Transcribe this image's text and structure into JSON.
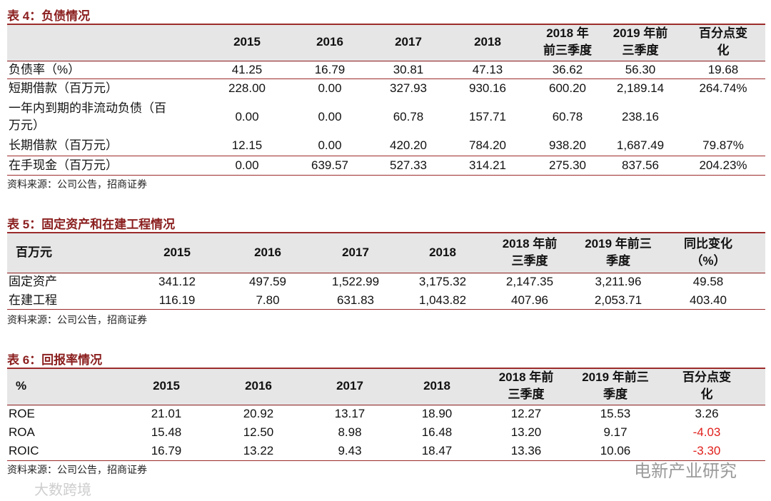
{
  "tables": [
    {
      "title": "表 4：负债情况",
      "header": [
        "",
        "2015",
        "2016",
        "2017",
        "2018",
        "2018 年\n前三季度",
        "2019 年前\n三季度",
        "百分点变\n化"
      ],
      "rows": [
        [
          "负债率（%）",
          "41.25",
          "16.79",
          "30.81",
          "47.13",
          "36.62",
          "56.30",
          "19.68"
        ],
        [
          "短期借款（百万元）",
          "228.00",
          "0.00",
          "327.93",
          "930.16",
          "600.20",
          "2,189.14",
          "264.74%"
        ],
        [
          "一年内到期的非流动负债（百\n万元）",
          "0.00",
          "0.00",
          "60.78",
          "157.71",
          "60.78",
          "238.16",
          null
        ],
        [
          "长期借款（百万元）",
          "12.15",
          "0.00",
          "420.20",
          "784.20",
          "938.20",
          "1,687.49",
          "79.87%"
        ],
        [
          "在手现金（百万元）",
          "0.00",
          "639.57",
          "527.33",
          "314.21",
          "275.30",
          "837.56",
          "204.23%"
        ]
      ],
      "source": "资料来源：公司公告，招商证券"
    },
    {
      "title": "表 5：固定资产和在建工程情况",
      "header": [
        "百万元",
        "2015",
        "2016",
        "2017",
        "2018",
        "2018 年前\n三季度",
        "2019 年前三\n季度",
        "同比变化\n（%）"
      ],
      "rows": [
        [
          "固定资产",
          "341.12",
          "497.59",
          "1,522.99",
          "3,175.32",
          "2,147.35",
          "3,211.96",
          "49.58"
        ],
        [
          "在建工程",
          "116.19",
          "7.80",
          "631.83",
          "1,043.82",
          "407.96",
          "2,053.71",
          "403.40"
        ]
      ],
      "source": "资料来源：公司公告，招商证券"
    },
    {
      "title": "表 6：回报率情况",
      "header": [
        "%",
        "2015",
        "2016",
        "2017",
        "2018",
        "2018 年前\n三季度",
        "2019 年前三\n季度",
        "百分点变\n化"
      ],
      "rows": [
        [
          "ROE",
          "21.01",
          "20.92",
          "13.17",
          "18.90",
          "12.27",
          "15.53",
          "3.26"
        ],
        [
          "ROA",
          "15.48",
          "12.50",
          "8.98",
          "16.48",
          "13.20",
          "9.17",
          "-4.03"
        ],
        [
          "ROIC",
          "16.79",
          "13.22",
          "9.43",
          "18.47",
          "13.36",
          "10.06",
          "-3.30"
        ]
      ],
      "source": "资料来源：公司公告，招商证券"
    }
  ],
  "watermarks": {
    "right": "电新产业研究",
    "left": "大数跨境"
  }
}
